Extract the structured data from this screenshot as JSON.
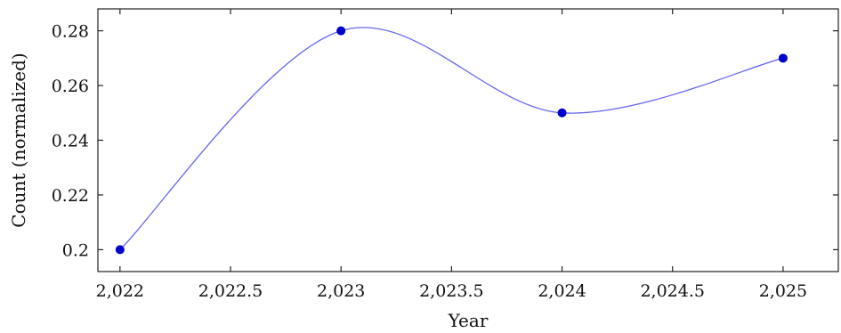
{
  "chart_data": {
    "type": "line",
    "title": "",
    "xlabel": "Year",
    "ylabel": "Count (normalized)",
    "xlim": [
      2021.9,
      2025.25
    ],
    "ylim": [
      0.192,
      0.288
    ],
    "x_ticks": [
      2022,
      2022.5,
      2023,
      2023.5,
      2024,
      2024.5,
      2025
    ],
    "x_tick_labels": [
      "2,022",
      "2,022.5",
      "2,023",
      "2,023.5",
      "2,024",
      "2,024.5",
      "2,025"
    ],
    "y_ticks": [
      0.2,
      0.22,
      0.24,
      0.26,
      0.28
    ],
    "y_tick_labels": [
      "0.2",
      "0.22",
      "0.24",
      "0.26",
      "0.28"
    ],
    "grid": false,
    "smooth": true,
    "series": [
      {
        "x": [
          2022,
          2023,
          2024,
          2025
        ],
        "y": [
          0.2,
          0.28,
          0.25,
          0.27
        ],
        "line_color": "#6666ee",
        "marker_color": "#0000cc"
      }
    ]
  }
}
